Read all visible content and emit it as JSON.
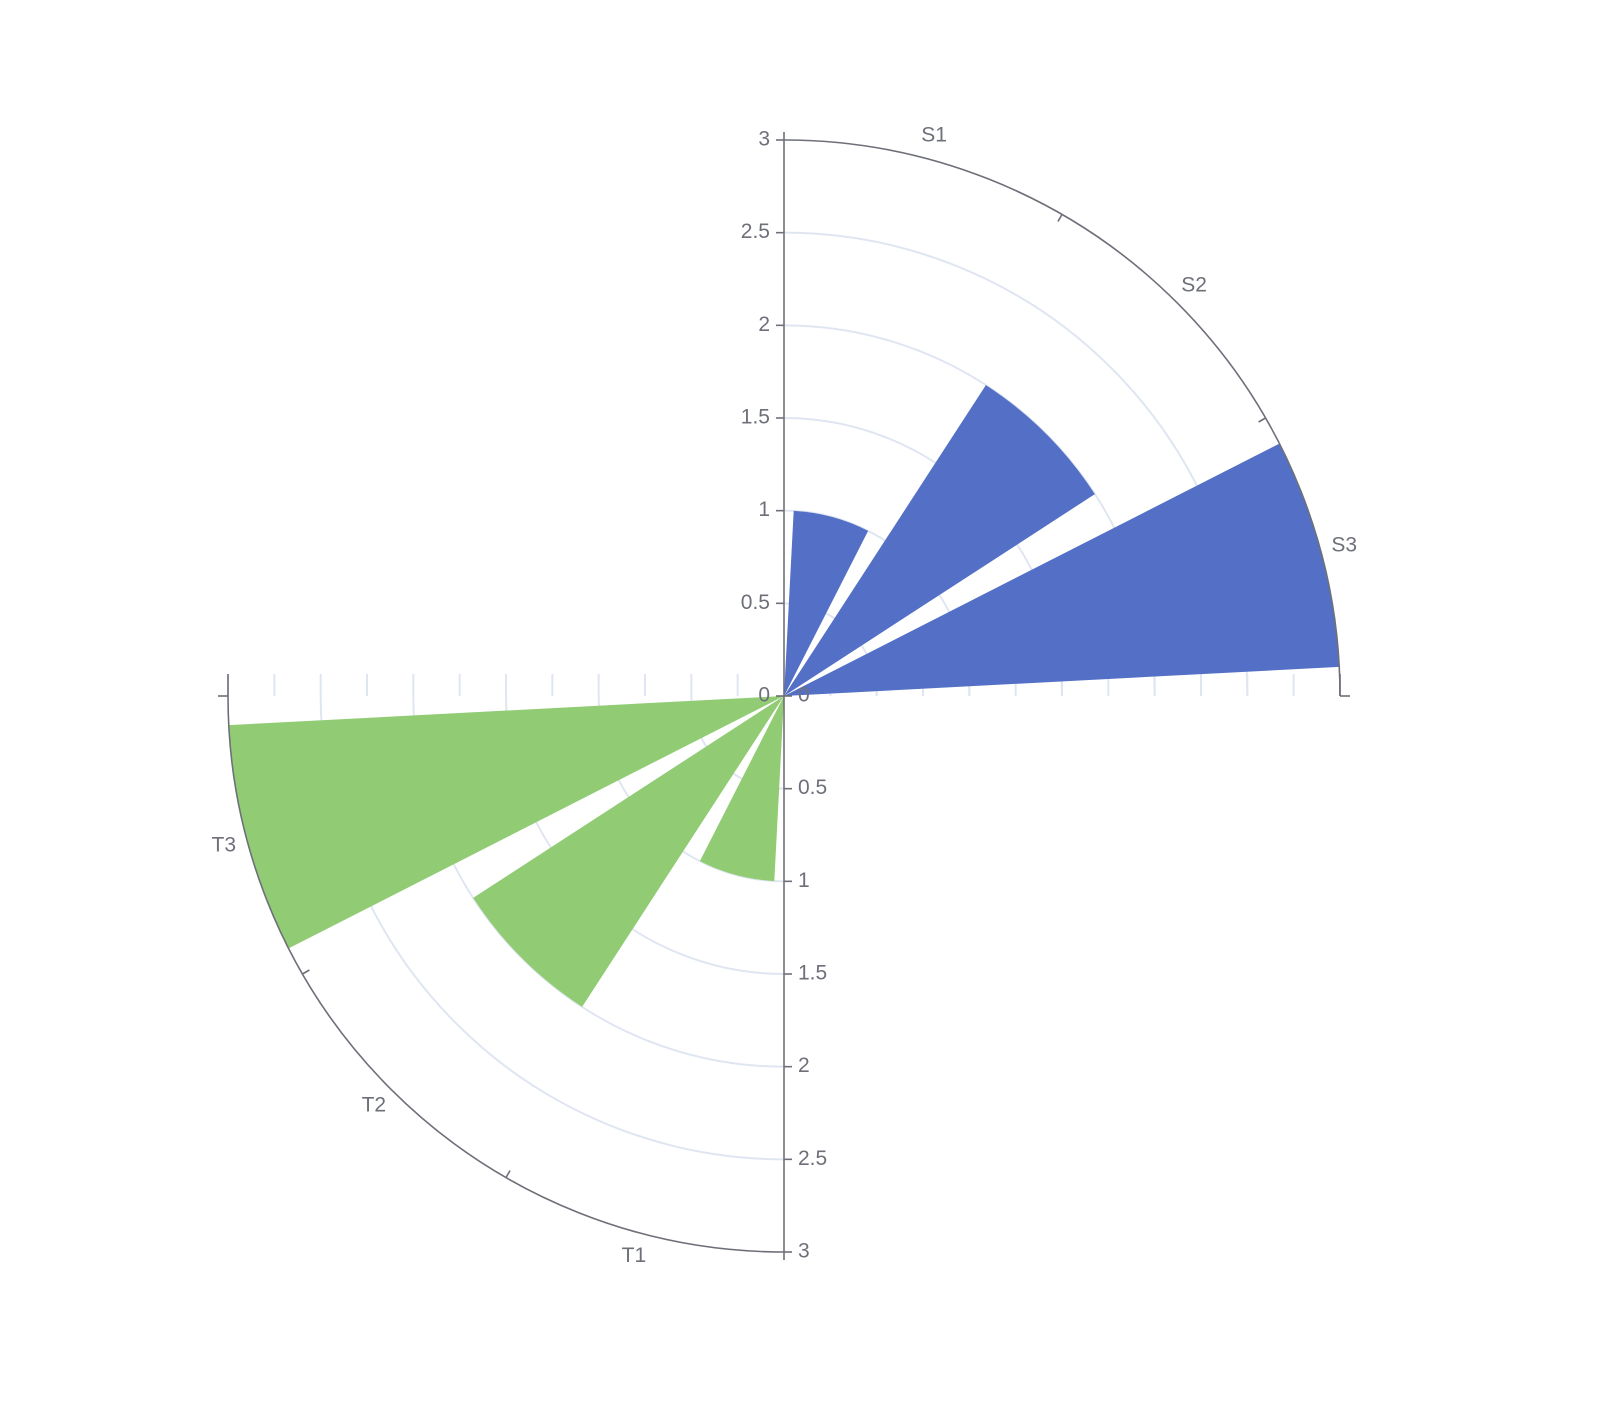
{
  "chart_data": {
    "type": "bar",
    "coordinate_system": "polar",
    "radius_axis": {
      "range": [
        0,
        3
      ],
      "ticks": [
        "0",
        "0.5",
        "1",
        "1.5",
        "2",
        "2.5",
        "3"
      ]
    },
    "grid": true,
    "polars": [
      {
        "id": "polar-s",
        "categories": [
          "S1",
          "S2",
          "S3"
        ],
        "angle_range_deg": [
          0,
          90
        ],
        "series": [
          {
            "values": [
              1,
              2,
              3
            ],
            "color": "#5470c6"
          }
        ]
      },
      {
        "id": "polar-t",
        "categories": [
          "T1",
          "T2",
          "T3"
        ],
        "angle_range_deg": [
          180,
          270
        ],
        "series": [
          {
            "values": [
              1,
              2,
              3
            ],
            "color": "#91cc75"
          }
        ]
      }
    ]
  }
}
